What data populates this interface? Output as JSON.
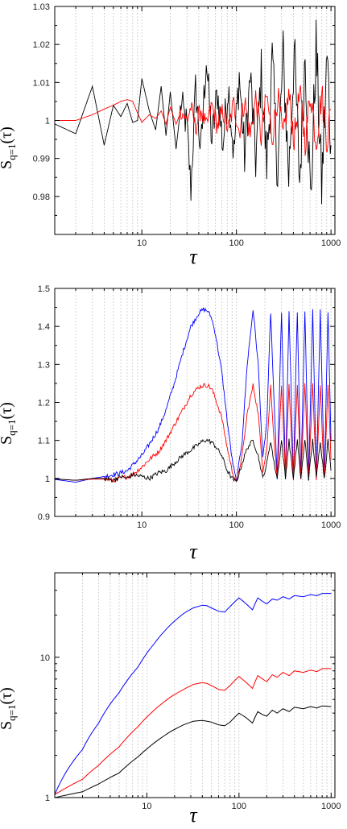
{
  "chart_data": [
    {
      "type": "line",
      "title": "",
      "xlabel": "τ",
      "ylabel": {
        "main": "S",
        "sub": "q=1",
        "arg": "(τ)"
      },
      "xscale": "log",
      "yscale": "linear",
      "xlim": [
        1.2,
        1100
      ],
      "ylim": [
        0.97,
        1.03
      ],
      "xticks": [
        10,
        100,
        1000
      ],
      "xtick_labels": [
        "10",
        "100",
        "1000"
      ],
      "yticks": [
        0.98,
        0.99,
        1.0,
        1.01,
        1.02,
        1.03
      ],
      "ytick_labels": [
        "0.98",
        "0.99",
        "1",
        "1.01",
        "1.02",
        "1.03"
      ],
      "grid": "vertical dotted lines at minor x ticks",
      "series": [
        {
          "color": "#000000",
          "x": [
            1,
            2,
            3,
            4,
            5,
            6,
            7,
            8,
            9,
            10,
            12,
            14,
            16,
            18,
            20,
            23,
            26,
            30,
            33,
            37,
            42,
            48,
            55,
            63,
            72,
            82,
            94,
            107,
            122,
            140,
            160,
            183,
            209,
            239,
            273,
            312,
            357,
            408,
            466,
            533,
            609,
            696,
            796,
            910,
            1000
          ],
          "y": [
            1.0,
            0.9965,
            1.009,
            0.9935,
            1.004,
            1.001,
            1.0045,
            0.9995,
            1.0,
            1.011,
            1.0025,
            0.9975,
            1.009,
            0.996,
            1.0075,
            0.9925,
            1.0045,
            0.9985,
            0.982,
            1.0085,
            0.9915,
            1.0165,
            0.9945,
            1.0075,
            0.9935,
            1.0095,
            0.991,
            1.012,
            0.9905,
            1.0115,
            0.9895,
            1.0125,
            0.9885,
            1.0155,
            0.9865,
            1.017,
            0.9855,
            1.0185,
            0.984,
            1.018,
            0.9785,
            1.0195,
            0.9825,
            1.0165,
            0.9935
          ],
          "noise_amplitude": [
            0,
            0,
            0,
            0,
            0,
            0,
            0,
            0,
            0,
            0,
            0,
            0,
            0,
            0,
            0,
            0,
            0,
            0,
            0,
            0,
            0,
            0,
            0,
            0,
            0,
            0,
            0,
            0,
            0,
            0,
            0,
            0,
            0,
            0,
            0,
            0,
            0,
            0,
            0,
            0,
            0,
            0,
            0,
            0,
            0
          ]
        },
        {
          "color": "#ff0000",
          "x": [
            1,
            2,
            3,
            4,
            5,
            6,
            7,
            8,
            9,
            10,
            12,
            14,
            16,
            18,
            20,
            23,
            26,
            30,
            33,
            37,
            42,
            48,
            55,
            63,
            72,
            82,
            94,
            107,
            122,
            140,
            160,
            183,
            209,
            239,
            273,
            312,
            357,
            408,
            466,
            533,
            609,
            696,
            796,
            910,
            1000
          ],
          "y": [
            1.0,
            1.0,
            1.0015,
            1.003,
            1.004,
            1.005,
            1.0055,
            1.005,
            1.002,
            0.9995,
            1.0015,
            1.0005,
            1.0025,
            0.999,
            1.0035,
            0.999,
            1.0025,
            1.0,
            1.0035,
            0.998,
            1.003,
            0.998,
            1.004,
            0.9985,
            1.0025,
            0.9975,
            1.0045,
            0.997,
            1.0055,
            0.996,
            1.006,
            0.9955,
            1.0065,
            0.9955,
            1.0065,
            0.995,
            1.007,
            0.995,
            1.007,
            0.9945,
            1.0075,
            0.9945,
            1.007,
            0.995,
            1.003
          ]
        }
      ]
    },
    {
      "type": "line",
      "title": "",
      "xlabel": "τ",
      "ylabel": {
        "main": "S",
        "sub": "q=1",
        "arg": "(τ)"
      },
      "xscale": "log",
      "yscale": "linear",
      "xlim": [
        1.2,
        1100
      ],
      "ylim": [
        0.9,
        1.5
      ],
      "xticks": [
        10,
        100,
        1000
      ],
      "xtick_labels": [
        "10",
        "100",
        "1000"
      ],
      "yticks": [
        0.9,
        1.0,
        1.1,
        1.2,
        1.3,
        1.4,
        1.5
      ],
      "ytick_labels": [
        "0.9",
        "1",
        "1.1",
        "1.2",
        "1.3",
        "1.4",
        "1.5"
      ],
      "grid": "vertical dotted lines at minor x ticks",
      "series": [
        {
          "color": "#0000ff",
          "x": [
            1,
            2,
            3,
            4,
            5,
            6,
            7,
            8,
            10,
            12,
            15,
            18,
            22,
            27,
            33,
            40,
            45,
            50,
            55,
            60,
            70,
            80,
            90,
            100,
            115,
            130,
            150,
            170,
            190,
            210,
            230,
            250,
            270,
            300,
            330,
            360,
            400,
            440,
            480,
            530,
            580,
            640,
            700,
            770,
            850,
            930,
            1000
          ],
          "y": [
            1.0,
            0.99,
            1.0,
            1.005,
            1.01,
            1.015,
            1.02,
            1.035,
            1.06,
            1.09,
            1.13,
            1.18,
            1.25,
            1.33,
            1.4,
            1.435,
            1.445,
            1.44,
            1.42,
            1.38,
            1.28,
            1.15,
            1.05,
            0.99,
            1.1,
            1.3,
            1.445,
            1.3,
            1.05,
            1.15,
            1.44,
            1.2,
            1.0,
            1.44,
            1.0,
            1.44,
            1.0,
            1.44,
            1.0,
            1.44,
            1.0,
            1.44,
            1.0,
            1.44,
            1.0,
            1.44,
            1.1
          ]
        },
        {
          "color": "#ff0000",
          "x": [
            1,
            2,
            3,
            4,
            5,
            6,
            7,
            8,
            10,
            12,
            15,
            18,
            22,
            27,
            33,
            40,
            45,
            50,
            55,
            60,
            70,
            80,
            90,
            100,
            115,
            130,
            150,
            170,
            190,
            210,
            230,
            250,
            270,
            300,
            330,
            360,
            400,
            440,
            480,
            530,
            580,
            640,
            700,
            770,
            850,
            930,
            1000
          ],
          "y": [
            1.0,
            0.995,
            0.998,
            0.998,
            0.995,
            1.0,
            1.005,
            1.01,
            1.03,
            1.05,
            1.07,
            1.1,
            1.14,
            1.18,
            1.22,
            1.24,
            1.245,
            1.245,
            1.235,
            1.21,
            1.16,
            1.08,
            1.02,
            0.99,
            1.06,
            1.17,
            1.245,
            1.17,
            1.02,
            1.08,
            1.245,
            1.1,
            1.0,
            1.245,
            1.0,
            1.245,
            1.0,
            1.245,
            1.0,
            1.245,
            1.0,
            1.245,
            1.0,
            1.245,
            1.0,
            1.245,
            1.05
          ]
        },
        {
          "color": "#000000",
          "x": [
            1,
            2,
            3,
            4,
            5,
            6,
            7,
            8,
            10,
            12,
            15,
            18,
            22,
            27,
            33,
            40,
            45,
            50,
            55,
            60,
            70,
            80,
            90,
            100,
            115,
            130,
            150,
            170,
            190,
            210,
            230,
            250,
            270,
            300,
            330,
            360,
            400,
            440,
            480,
            530,
            580,
            640,
            700,
            770,
            850,
            930,
            1000
          ],
          "y": [
            1.0,
            0.995,
            1.0,
            1.0,
            0.995,
            1.005,
            1.0,
            1.01,
            1.005,
            1.0,
            1.015,
            1.02,
            1.04,
            1.06,
            1.075,
            1.09,
            1.1,
            1.1,
            1.095,
            1.085,
            1.06,
            1.02,
            1.0,
            0.99,
            1.04,
            1.08,
            1.1,
            1.06,
            1.0,
            1.04,
            1.1,
            1.04,
            1.0,
            1.1,
            1.0,
            1.1,
            1.0,
            1.1,
            1.0,
            1.1,
            1.0,
            1.1,
            1.0,
            1.1,
            1.0,
            1.1,
            1.02
          ]
        }
      ]
    },
    {
      "type": "line",
      "title": "",
      "xlabel": "τ",
      "ylabel": {
        "main": "S",
        "sub": "q=1",
        "arg": "(τ)"
      },
      "xscale": "log",
      "yscale": "log",
      "xlim": [
        1,
        1100
      ],
      "ylim": [
        1,
        40
      ],
      "xticks": [
        10,
        100,
        1000
      ],
      "xtick_labels": [
        "10",
        "100",
        "1000"
      ],
      "yticks": [
        1,
        10
      ],
      "ytick_labels": [
        "1",
        "10"
      ],
      "grid": "vertical dotted lines at minor x ticks",
      "series": [
        {
          "color": "#0000ff",
          "x": [
            1,
            2,
            3,
            5,
            8,
            12,
            18,
            25,
            32,
            40,
            45,
            50,
            60,
            70,
            80,
            100,
            120,
            140,
            160,
            180,
            200,
            230,
            260,
            300,
            350,
            400,
            500,
            600,
            700,
            800,
            1000
          ],
          "y": [
            1.05,
            2.2,
            3.4,
            5.6,
            8.5,
            12.5,
            17.0,
            20.5,
            22.5,
            23.5,
            23.3,
            22.5,
            21.3,
            21.0,
            23.0,
            26.5,
            24.0,
            21.8,
            26.5,
            25.0,
            24.0,
            26.0,
            25.5,
            27.0,
            26.0,
            27.5,
            27.0,
            28.0,
            27.5,
            28.5,
            28.5
          ]
        },
        {
          "color": "#ff0000",
          "x": [
            1,
            2,
            3,
            5,
            8,
            12,
            18,
            25,
            32,
            40,
            45,
            50,
            60,
            70,
            80,
            100,
            120,
            140,
            160,
            180,
            200,
            230,
            260,
            300,
            350,
            400,
            500,
            600,
            700,
            800,
            1000
          ],
          "y": [
            1.05,
            1.35,
            1.7,
            2.3,
            3.2,
            4.2,
            5.2,
            5.9,
            6.4,
            6.6,
            6.5,
            6.3,
            5.9,
            5.8,
            6.3,
            7.3,
            6.6,
            6.0,
            7.4,
            7.0,
            6.7,
            7.5,
            7.2,
            7.8,
            7.4,
            8.0,
            7.8,
            8.1,
            7.9,
            8.3,
            8.3
          ]
        },
        {
          "color": "#000000",
          "x": [
            1,
            2,
            3,
            5,
            8,
            12,
            18,
            25,
            32,
            40,
            45,
            50,
            60,
            70,
            80,
            100,
            120,
            140,
            160,
            180,
            200,
            230,
            260,
            300,
            350,
            400,
            500,
            600,
            700,
            800,
            1000
          ],
          "y": [
            1.0,
            1.1,
            1.25,
            1.5,
            1.95,
            2.45,
            2.95,
            3.3,
            3.5,
            3.55,
            3.5,
            3.45,
            3.3,
            3.25,
            3.45,
            4.0,
            3.7,
            3.4,
            4.1,
            3.9,
            3.8,
            4.2,
            4.0,
            4.3,
            4.1,
            4.4,
            4.3,
            4.45,
            4.35,
            4.5,
            4.45
          ]
        }
      ]
    }
  ]
}
